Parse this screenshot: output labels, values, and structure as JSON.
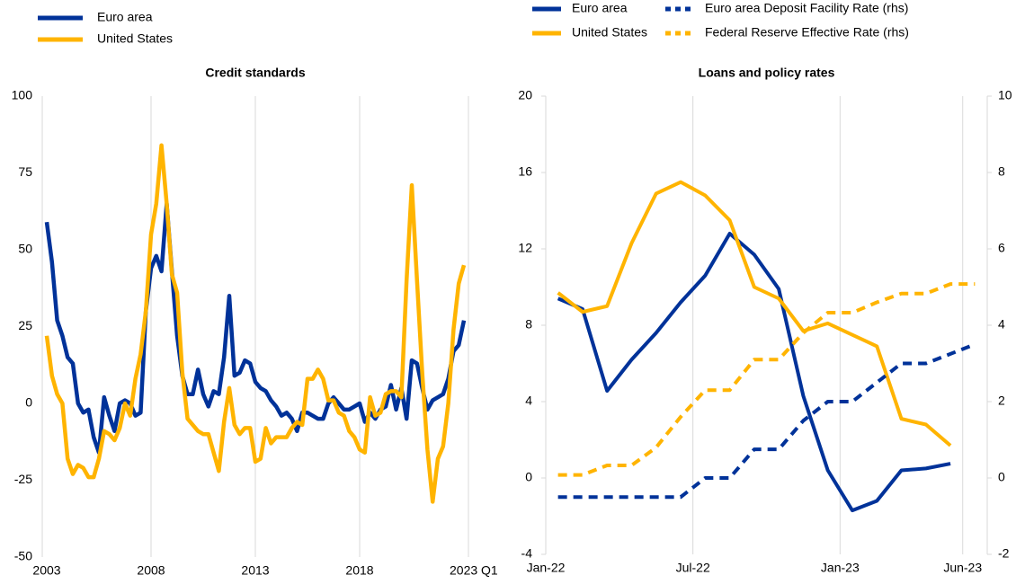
{
  "chart_data": [
    {
      "type": "line",
      "title": "Credit standards",
      "categories": [
        "2003",
        null,
        null,
        null,
        null,
        null,
        null,
        null,
        null,
        null,
        null,
        null,
        null,
        null,
        null,
        null,
        null,
        null,
        null,
        null,
        "2008",
        null,
        null,
        null,
        null,
        null,
        null,
        null,
        null,
        null,
        null,
        null,
        null,
        null,
        null,
        null,
        null,
        null,
        null,
        null,
        "2013",
        null,
        null,
        null,
        null,
        null,
        null,
        null,
        null,
        null,
        null,
        null,
        null,
        null,
        null,
        null,
        null,
        null,
        null,
        null,
        "2018",
        null,
        null,
        null,
        null,
        null,
        null,
        null,
        null,
        null,
        null,
        null,
        null,
        null,
        null,
        null,
        null,
        null,
        null,
        null,
        "2023 Q1"
      ],
      "ylim": [
        -50,
        100
      ],
      "yticks": [
        -50,
        -25,
        0,
        25,
        50,
        75,
        100
      ],
      "grid": true,
      "legend": "top-left",
      "series": [
        {
          "name": "Euro area",
          "color": "#003299",
          "values": [
            59,
            46,
            27,
            22,
            15,
            13,
            0,
            -3,
            -2,
            -11,
            -16,
            2,
            -4,
            -9,
            0,
            1,
            0,
            -4,
            -3,
            30,
            44,
            48,
            43,
            65,
            43,
            22,
            9,
            3,
            3,
            11,
            3,
            -1,
            4,
            3,
            15,
            35,
            9,
            10,
            14,
            13,
            7,
            5,
            4,
            1,
            -1,
            -4,
            -3,
            -5,
            -9,
            -3,
            -3,
            -4,
            -5,
            -5,
            0,
            2,
            0,
            -2,
            -2,
            -1,
            0,
            -6,
            -3,
            -5,
            -2,
            -1,
            6,
            -2,
            5,
            -5,
            14,
            13,
            5,
            -2,
            1,
            2,
            3,
            8,
            17,
            19,
            27
          ]
        },
        {
          "name": "United States",
          "color": "#ffb400",
          "values": [
            22,
            9,
            3,
            0,
            -18,
            -23,
            -20,
            -21,
            -24,
            -24,
            -18,
            -9,
            -10,
            -12,
            -8,
            0,
            -4,
            8,
            16,
            30,
            55,
            65,
            84,
            65,
            42,
            36,
            10,
            -5,
            -7,
            -9,
            -10,
            -10,
            -16,
            -22,
            -6,
            5,
            -7,
            -10,
            -8,
            -8,
            -19,
            -18,
            -8,
            -13,
            -11,
            -11,
            -11,
            -8,
            -6,
            -7,
            8,
            8,
            11,
            8,
            1,
            1,
            -3,
            -4,
            -9,
            -11,
            -15,
            -16,
            2,
            -4,
            -3,
            3,
            4,
            4,
            2,
            40,
            71,
            40,
            10,
            -15,
            -32,
            -18,
            -14,
            0,
            24,
            39,
            45
          ]
        }
      ]
    },
    {
      "type": "line",
      "title": "Loans and policy rates",
      "categories": [
        "Jan-22",
        null,
        null,
        null,
        null,
        null,
        "Jul-22",
        null,
        null,
        null,
        null,
        null,
        "Jan-23",
        null,
        null,
        null,
        null,
        "Jun-23"
      ],
      "ylim": [
        -4,
        20
      ],
      "yticks": [
        -4,
        0,
        4,
        8,
        12,
        16,
        20
      ],
      "y2lim": [
        -2,
        10
      ],
      "y2ticks": [
        -2,
        0,
        2,
        4,
        6,
        8,
        10
      ],
      "grid": true,
      "legend": "top-left",
      "series": [
        {
          "name": "Euro area",
          "color": "#003299",
          "values": [
            9.4,
            8.85,
            4.56,
            6.2,
            7.6,
            9.2,
            10.6,
            12.8,
            11.7,
            9.9,
            4.3,
            0.4,
            -1.7,
            -1.2,
            0.4,
            0.5,
            0.75,
            null
          ]
        },
        {
          "name": "United States",
          "color": "#ffb400",
          "values": [
            9.7,
            8.7,
            9.0,
            12.3,
            14.9,
            15.5,
            14.8,
            13.5,
            10.0,
            9.4,
            7.7,
            8.1,
            7.5,
            6.9,
            3.1,
            2.8,
            1.7,
            null
          ]
        },
        {
          "name": "Euro area Deposit Facility Rate (rhs)",
          "color": "#003299",
          "dashed": true,
          "axis": "y2",
          "values": [
            -0.5,
            -0.5,
            -0.5,
            -0.5,
            -0.5,
            -0.5,
            0,
            0,
            0.75,
            0.75,
            1.5,
            2.0,
            2.0,
            2.5,
            3.0,
            3.0,
            3.25,
            3.5
          ]
        },
        {
          "name": "Federal Reserve Effective Rate (rhs)",
          "color": "#ffb400",
          "dashed": true,
          "axis": "y2",
          "values": [
            0.08,
            0.08,
            0.33,
            0.33,
            0.8,
            1.6,
            2.3,
            2.3,
            3.1,
            3.1,
            3.8,
            4.33,
            4.33,
            4.6,
            4.83,
            4.83,
            5.08,
            5.08
          ]
        }
      ]
    }
  ]
}
